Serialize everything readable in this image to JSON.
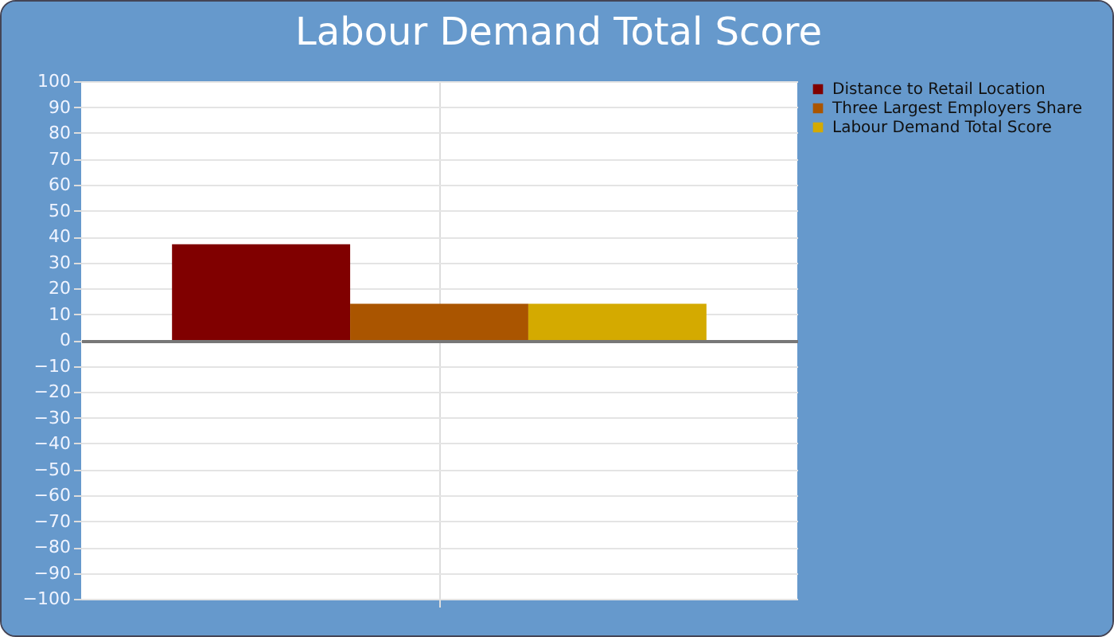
{
  "chart_data": {
    "type": "bar",
    "title": "Labour Demand Total Score",
    "categories": [
      null
    ],
    "series": [
      {
        "name": "Distance to Retail Location",
        "color": "#800000",
        "values": [
          37
        ]
      },
      {
        "name": "Three Largest Employers Share",
        "color": "#aa5500",
        "values": [
          14
        ]
      },
      {
        "name": "Labour Demand Total Score",
        "color": "#d4aa00",
        "values": [
          14
        ]
      }
    ],
    "ylim": [
      -100,
      100
    ],
    "yticks": [
      -100,
      -90,
      -80,
      -70,
      -60,
      -50,
      -40,
      -30,
      -20,
      -10,
      0,
      10,
      20,
      30,
      40,
      50,
      60,
      70,
      80,
      90,
      100
    ],
    "grid": true,
    "legend": "right"
  }
}
